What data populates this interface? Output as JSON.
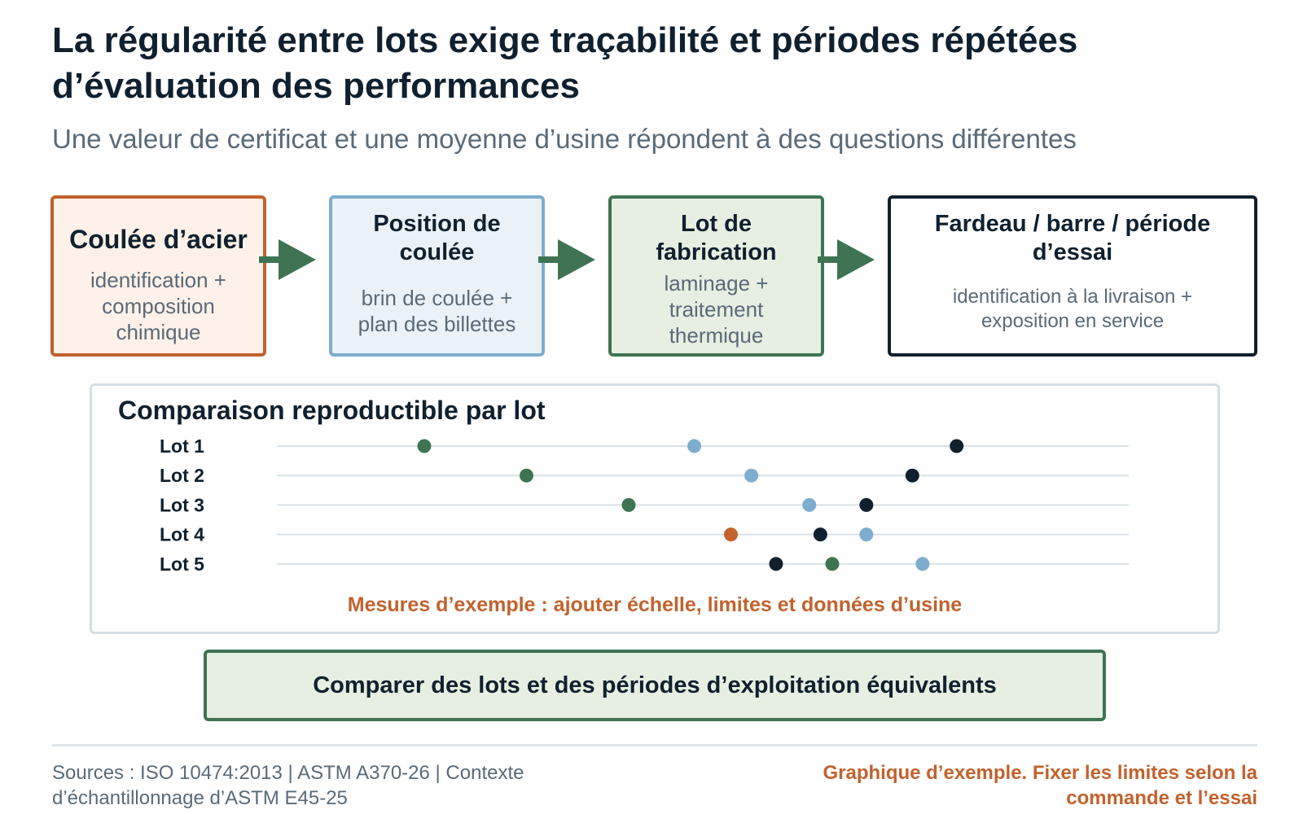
{
  "header": {
    "title": "La régularité entre lots exige traçabilité et périodes répétées d’évaluation des performances",
    "subtitle": "Une valeur de certificat et une moyenne d’usine répondent à des questions différentes"
  },
  "flow": {
    "steps": [
      {
        "title": "Coulée d’acier",
        "body": "identification + composition chimique"
      },
      {
        "title": "Position de coulée",
        "body": "brin de coulée + plan des billettes"
      },
      {
        "title": "Lot de fabrication",
        "body": "laminage + traitement thermique"
      },
      {
        "title": "Fardeau / barre / période d’essai",
        "body": "identification à la livraison + exposition en service"
      }
    ]
  },
  "comparison": {
    "title": "Comparaison reproductible par lot",
    "note": "Mesures d’exemple : ajouter échelle, limites et données d’usine"
  },
  "chart_data": {
    "type": "scatter",
    "title": "Comparaison reproductible par lot",
    "categories": [
      "Lot 1",
      "Lot 2",
      "Lot 3",
      "Lot 4",
      "Lot 5"
    ],
    "xlim": [
      0,
      100
    ],
    "grid": true,
    "points": [
      {
        "lot": "Lot 1",
        "x": 17.3,
        "color": "#3f7453"
      },
      {
        "lot": "Lot 1",
        "x": 49.0,
        "color": "#7eadcf"
      },
      {
        "lot": "Lot 1",
        "x": 79.8,
        "color": "#10202e"
      },
      {
        "lot": "Lot 2",
        "x": 29.3,
        "color": "#3f7453"
      },
      {
        "lot": "Lot 2",
        "x": 55.7,
        "color": "#7eadcf"
      },
      {
        "lot": "Lot 2",
        "x": 74.6,
        "color": "#10202e"
      },
      {
        "lot": "Lot 3",
        "x": 41.3,
        "color": "#3f7453"
      },
      {
        "lot": "Lot 3",
        "x": 62.5,
        "color": "#7eadcf"
      },
      {
        "lot": "Lot 3",
        "x": 69.2,
        "color": "#10202e"
      },
      {
        "lot": "Lot 4",
        "x": 53.3,
        "color": "#c2622d"
      },
      {
        "lot": "Lot 4",
        "x": 63.8,
        "color": "#10202e"
      },
      {
        "lot": "Lot 4",
        "x": 69.2,
        "color": "#7eadcf"
      },
      {
        "lot": "Lot 5",
        "x": 58.6,
        "color": "#10202e"
      },
      {
        "lot": "Lot 5",
        "x": 65.2,
        "color": "#3f7453"
      },
      {
        "lot": "Lot 5",
        "x": 75.8,
        "color": "#7eadcf"
      }
    ]
  },
  "cta": {
    "label": "Comparer des lots et des périodes d’exploitation équivalents"
  },
  "footer": {
    "sources": "Sources : ISO 10474:2013 | ASTM A370-26 | Contexte d’échantillonnage d’ASTM E45-25",
    "disclaimer": "Graphique d’exemple. Fixer les limites selon la commande et l’essai"
  },
  "colors": {
    "orange": "#c2622d",
    "light_blue": "#7eadcf",
    "green": "#3f7453",
    "navy": "#10202e",
    "grey_text": "#5a6a78"
  }
}
